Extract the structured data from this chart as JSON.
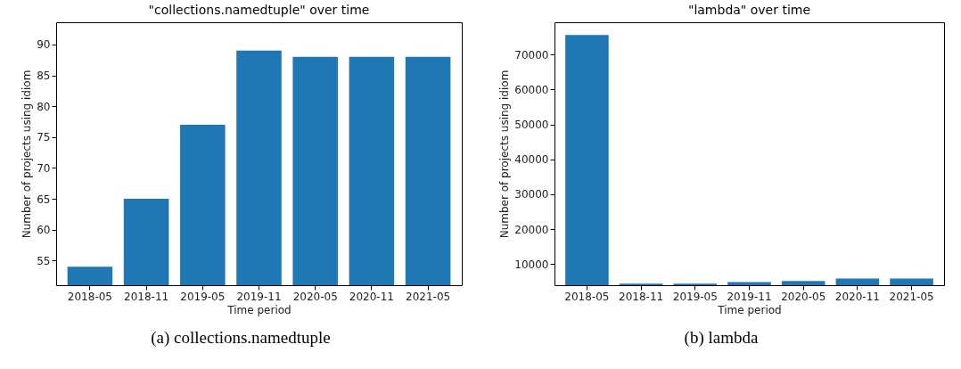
{
  "chart_data": [
    {
      "type": "bar",
      "title": "\"collections.namedtuple\" over time",
      "xlabel": "Time period",
      "ylabel": "Number of projects using idiom",
      "categories": [
        "2018-05",
        "2018-11",
        "2019-05",
        "2019-11",
        "2020-05",
        "2020-11",
        "2021-05"
      ],
      "values": [
        54,
        65,
        77,
        89,
        88,
        88,
        88
      ],
      "color": "#1f77b4",
      "ylim": [
        51,
        93.6
      ],
      "yticks": [
        55,
        60,
        65,
        70,
        75,
        80,
        85,
        90
      ],
      "grid": false,
      "annotations": [
        "(a) collections.namedtuple"
      ]
    },
    {
      "type": "bar",
      "title": "\"lambda\" over time",
      "xlabel": "Time period",
      "ylabel": "Number of projects using idiom",
      "categories": [
        "2018-05",
        "2018-11",
        "2019-05",
        "2019-11",
        "2020-05",
        "2020-11",
        "2021-05"
      ],
      "values": [
        75600,
        4400,
        4400,
        4850,
        5200,
        5900,
        5900
      ],
      "color": "#1f77b4",
      "ylim": [
        3956,
        79240
      ],
      "yticks": [
        10000,
        20000,
        30000,
        40000,
        50000,
        60000,
        70000
      ],
      "grid": false,
      "annotations": [
        "(b) lambda"
      ]
    }
  ]
}
